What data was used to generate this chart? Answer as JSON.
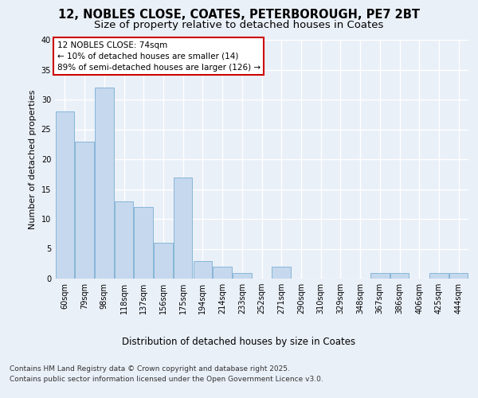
{
  "title_line1": "12, NOBLES CLOSE, COATES, PETERBOROUGH, PE7 2BT",
  "title_line2": "Size of property relative to detached houses in Coates",
  "xlabel": "Distribution of detached houses by size in Coates",
  "ylabel": "Number of detached properties",
  "categories": [
    "60sqm",
    "79sqm",
    "98sqm",
    "118sqm",
    "137sqm",
    "156sqm",
    "175sqm",
    "194sqm",
    "214sqm",
    "233sqm",
    "252sqm",
    "271sqm",
    "290sqm",
    "310sqm",
    "329sqm",
    "348sqm",
    "367sqm",
    "386sqm",
    "406sqm",
    "425sqm",
    "444sqm"
  ],
  "values": [
    28,
    23,
    32,
    13,
    12,
    6,
    17,
    3,
    2,
    1,
    0,
    2,
    0,
    0,
    0,
    0,
    1,
    1,
    0,
    1,
    1
  ],
  "bar_color": "#c5d8ed",
  "bar_edge_color": "#7aafd4",
  "annotation_box_text": "12 NOBLES CLOSE: 74sqm\n← 10% of detached houses are smaller (14)\n89% of semi-detached houses are larger (126) →",
  "annotation_box_color": "#ffffff",
  "annotation_box_edge_color": "#cc0000",
  "annotation_fontsize": 7.5,
  "bg_color": "#eaf0f8",
  "plot_bg_color": "#eaf0f8",
  "grid_color": "#ffffff",
  "title_fontsize": 10.5,
  "subtitle_fontsize": 9.5,
  "xlabel_fontsize": 8.5,
  "ylabel_fontsize": 8,
  "tick_fontsize": 7,
  "footer_line1": "Contains HM Land Registry data © Crown copyright and database right 2025.",
  "footer_line2": "Contains public sector information licensed under the Open Government Licence v3.0.",
  "footer_fontsize": 6.5,
  "ylim": [
    0,
    40
  ],
  "yticks": [
    0,
    5,
    10,
    15,
    20,
    25,
    30,
    35,
    40
  ]
}
